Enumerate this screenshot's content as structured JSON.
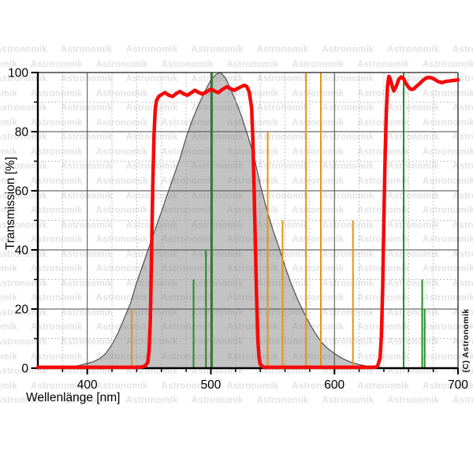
{
  "watermark": {
    "text": "Astronomik",
    "repeat_per_row": 9,
    "color": "#e3e3e3"
  },
  "copyright_label": "(C) Astronomik",
  "chart_data": {
    "type": "line",
    "title": "",
    "xlabel": "Wellenlänge [nm]",
    "ylabel": "Transmission [%]",
    "xlim": [
      360,
      700
    ],
    "ylim": [
      0,
      100
    ],
    "grid": {
      "major_color": "#4a4a4a",
      "minor_color": "#999999",
      "minor_style": "dotted"
    },
    "x_ticks_major": {
      "values": [
        400,
        500,
        600,
        700
      ],
      "labels": [
        "400",
        "500",
        "600",
        "700"
      ]
    },
    "x_tick_minor_step": 20,
    "y_ticks_major": {
      "values": [
        0,
        20,
        40,
        60,
        80,
        100
      ],
      "labels": [
        "0",
        "20",
        "40",
        "60",
        "80",
        "100"
      ]
    },
    "y_tick_minor_step": 10,
    "series": [
      {
        "name": "filter-transmission",
        "kind": "line",
        "color": "#f70808",
        "stroke_width": 4.5,
        "points": [
          [
            360,
            0.3
          ],
          [
            438,
            0.3
          ],
          [
            444,
            0.4
          ],
          [
            447,
            0.8
          ],
          [
            449,
            2
          ],
          [
            450,
            6
          ],
          [
            451,
            16
          ],
          [
            452,
            38
          ],
          [
            453,
            62
          ],
          [
            454,
            79
          ],
          [
            455,
            87.5
          ],
          [
            456,
            90.5
          ],
          [
            458,
            92
          ],
          [
            461,
            92.8
          ],
          [
            463,
            93.2
          ],
          [
            466,
            92.3
          ],
          [
            469,
            91.9
          ],
          [
            472,
            92.9
          ],
          [
            475,
            93.6
          ],
          [
            478,
            92.8
          ],
          [
            481,
            92.3
          ],
          [
            484,
            93.1
          ],
          [
            487,
            94
          ],
          [
            490,
            93.3
          ],
          [
            493,
            92.7
          ],
          [
            497,
            93.6
          ],
          [
            500,
            94.4
          ],
          [
            503,
            93.7
          ],
          [
            506,
            93.2
          ],
          [
            509,
            94.2
          ],
          [
            513,
            95.2
          ],
          [
            516,
            94.5
          ],
          [
            519,
            94
          ],
          [
            523,
            94.9
          ],
          [
            527,
            95.7
          ],
          [
            529,
            95.3
          ],
          [
            531,
            93.5
          ],
          [
            533,
            88
          ],
          [
            534,
            77
          ],
          [
            535,
            61
          ],
          [
            536,
            42
          ],
          [
            537,
            24
          ],
          [
            538,
            10
          ],
          [
            539,
            3.5
          ],
          [
            540,
            1.2
          ],
          [
            543,
            0.3
          ],
          [
            633,
            0.3
          ],
          [
            635,
            0.8
          ],
          [
            637,
            3.5
          ],
          [
            638,
            11
          ],
          [
            639,
            27
          ],
          [
            640,
            50
          ],
          [
            641,
            71
          ],
          [
            642,
            87
          ],
          [
            643,
            95.5
          ],
          [
            644,
            98.7
          ],
          [
            645,
            98
          ],
          [
            647,
            95
          ],
          [
            648,
            93.8
          ],
          [
            650,
            95.3
          ],
          [
            652,
            97.7
          ],
          [
            654,
            98.5
          ],
          [
            656,
            97.9
          ],
          [
            658,
            96.2
          ],
          [
            660,
            95
          ],
          [
            662,
            94.3
          ],
          [
            664,
            94.4
          ],
          [
            666,
            95.2
          ],
          [
            669,
            96.3
          ],
          [
            672,
            97.5
          ],
          [
            675,
            98.3
          ],
          [
            678,
            98.3
          ],
          [
            681,
            97.7
          ],
          [
            684,
            96.9
          ],
          [
            687,
            96.6
          ],
          [
            690,
            97
          ],
          [
            694,
            97.2
          ],
          [
            700,
            97.5
          ]
        ]
      },
      {
        "name": "eye-sensitivity-curve",
        "kind": "area",
        "fill": "rgba(112,112,112,0.42)",
        "outline": "#4f4f4f",
        "points": [
          [
            386,
            0
          ],
          [
            390,
            0.6
          ],
          [
            395,
            1.1
          ],
          [
            400,
            1.6
          ],
          [
            405,
            2.2
          ],
          [
            410,
            3.2
          ],
          [
            415,
            5
          ],
          [
            420,
            8
          ],
          [
            425,
            12
          ],
          [
            430,
            17
          ],
          [
            435,
            22
          ],
          [
            440,
            29
          ],
          [
            445,
            35
          ],
          [
            450,
            41
          ],
          [
            455,
            47
          ],
          [
            460,
            53
          ],
          [
            465,
            59
          ],
          [
            470,
            65
          ],
          [
            475,
            71
          ],
          [
            480,
            78
          ],
          [
            485,
            84
          ],
          [
            490,
            89
          ],
          [
            495,
            93.5
          ],
          [
            500,
            97.5
          ],
          [
            504,
            99.3
          ],
          [
            508,
            100
          ],
          [
            512,
            98
          ],
          [
            516,
            94.5
          ],
          [
            520,
            90.5
          ],
          [
            525,
            85
          ],
          [
            530,
            78.5
          ],
          [
            535,
            71.5
          ],
          [
            540,
            62
          ],
          [
            545,
            54
          ],
          [
            550,
            47
          ],
          [
            555,
            41
          ],
          [
            560,
            34.5
          ],
          [
            565,
            28.5
          ],
          [
            570,
            23.5
          ],
          [
            575,
            19
          ],
          [
            580,
            15
          ],
          [
            585,
            11.5
          ],
          [
            590,
            8.5
          ],
          [
            595,
            6.5
          ],
          [
            600,
            5
          ],
          [
            605,
            3.6
          ],
          [
            610,
            2.6
          ],
          [
            615,
            1.8
          ],
          [
            620,
            1.2
          ],
          [
            625,
            0.8
          ],
          [
            630,
            0.5
          ],
          [
            635,
            0.3
          ],
          [
            641,
            0
          ]
        ]
      }
    ],
    "emission_lines": [
      {
        "group": "nebula-lines",
        "color": "#229022",
        "lines": [
          {
            "wavelength": 486,
            "height": 30
          },
          {
            "wavelength": 496,
            "height": 40
          },
          {
            "wavelength": 501,
            "height": 100
          },
          {
            "wavelength": 656,
            "height": 100
          },
          {
            "wavelength": 671,
            "height": 30
          },
          {
            "wavelength": 673,
            "height": 20
          }
        ]
      },
      {
        "group": "light-pollution-lines",
        "color": "#e6940f",
        "lines": [
          {
            "wavelength": 436,
            "height": 20
          },
          {
            "wavelength": 546,
            "height": 80
          },
          {
            "wavelength": 558,
            "height": 50
          },
          {
            "wavelength": 577,
            "height": 100
          },
          {
            "wavelength": 589,
            "height": 100
          },
          {
            "wavelength": 615,
            "height": 50
          }
        ]
      }
    ]
  }
}
